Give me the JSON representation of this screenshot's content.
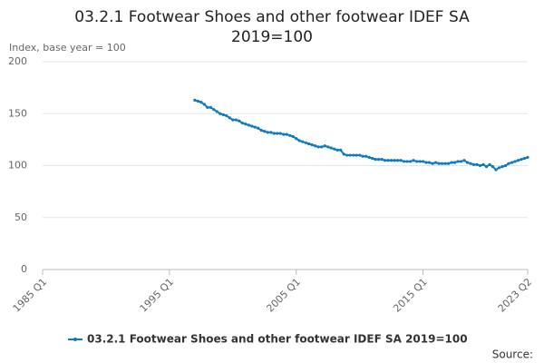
{
  "chart_data": {
    "type": "line",
    "title": "03.2.1 Footwear Shoes and other footwear IDEF SA 2019=100",
    "y_axis_label": "Index, base year = 100",
    "source": "Source:",
    "categories": [
      "1985 Q1",
      null,
      null,
      null,
      null,
      null,
      null,
      null,
      null,
      null,
      null,
      null,
      null,
      null,
      null,
      null,
      null,
      null,
      null,
      null,
      null,
      null,
      null,
      null,
      null,
      null,
      null,
      null,
      null,
      null,
      null,
      null,
      null,
      null,
      null,
      null,
      null,
      null,
      null,
      null,
      "1995 Q1",
      null,
      null,
      null,
      null,
      null,
      null,
      null,
      null,
      null,
      null,
      null,
      null,
      null,
      null,
      null,
      null,
      null,
      null,
      null,
      null,
      null,
      null,
      null,
      null,
      null,
      null,
      null,
      null,
      null,
      null,
      null,
      null,
      null,
      null,
      null,
      null,
      null,
      null,
      null,
      "2005 Q1",
      null,
      null,
      null,
      null,
      null,
      null,
      null,
      null,
      null,
      null,
      null,
      null,
      null,
      null,
      null,
      null,
      null,
      null,
      null,
      null,
      null,
      null,
      null,
      null,
      null,
      null,
      null,
      null,
      null,
      null,
      null,
      null,
      null,
      null,
      null,
      null,
      null,
      null,
      null,
      "2015 Q1",
      null,
      null,
      null,
      null,
      null,
      null,
      null,
      null,
      null,
      null,
      null,
      null,
      null,
      null,
      null,
      null,
      null,
      null,
      null,
      null,
      null,
      null,
      null,
      null,
      null,
      null,
      null,
      null,
      null,
      null,
      null,
      null,
      "2023 Q2"
    ],
    "series": [
      {
        "name": "03.2.1 Footwear Shoes and other footwear IDEF SA 2019=100",
        "color": "#0f7bbd",
        "values": [
          null,
          null,
          null,
          null,
          null,
          null,
          null,
          null,
          null,
          null,
          null,
          null,
          null,
          null,
          null,
          null,
          null,
          null,
          null,
          null,
          null,
          null,
          null,
          null,
          null,
          null,
          null,
          null,
          null,
          null,
          null,
          null,
          null,
          null,
          null,
          null,
          null,
          null,
          null,
          null,
          null,
          null,
          null,
          null,
          null,
          null,
          null,
          null,
          163,
          162,
          161,
          159,
          156,
          156,
          154,
          152,
          150,
          149,
          148,
          146,
          144,
          144,
          143,
          141,
          140,
          139,
          138,
          137,
          136,
          134,
          133,
          132,
          132,
          131,
          131,
          131,
          130,
          130,
          129,
          128,
          126,
          124,
          123,
          122,
          121,
          120,
          119,
          118,
          118,
          119,
          118,
          117,
          116,
          115,
          115,
          111,
          110,
          110,
          110,
          110,
          110,
          109,
          109,
          108,
          107,
          106,
          106,
          106,
          105,
          105,
          105,
          105,
          105,
          105,
          104,
          104,
          104,
          105,
          104,
          104,
          104,
          103,
          103,
          102,
          103,
          102,
          102,
          102,
          102,
          103,
          103,
          104,
          104,
          105,
          103,
          102,
          101,
          101,
          100,
          101,
          99,
          101,
          99,
          96,
          98,
          99,
          100,
          102,
          103,
          104,
          105,
          106,
          107,
          108
        ]
      }
    ],
    "ylim": [
      0,
      200
    ],
    "yticks": [
      0,
      50,
      100,
      150,
      200
    ],
    "grid": true
  }
}
